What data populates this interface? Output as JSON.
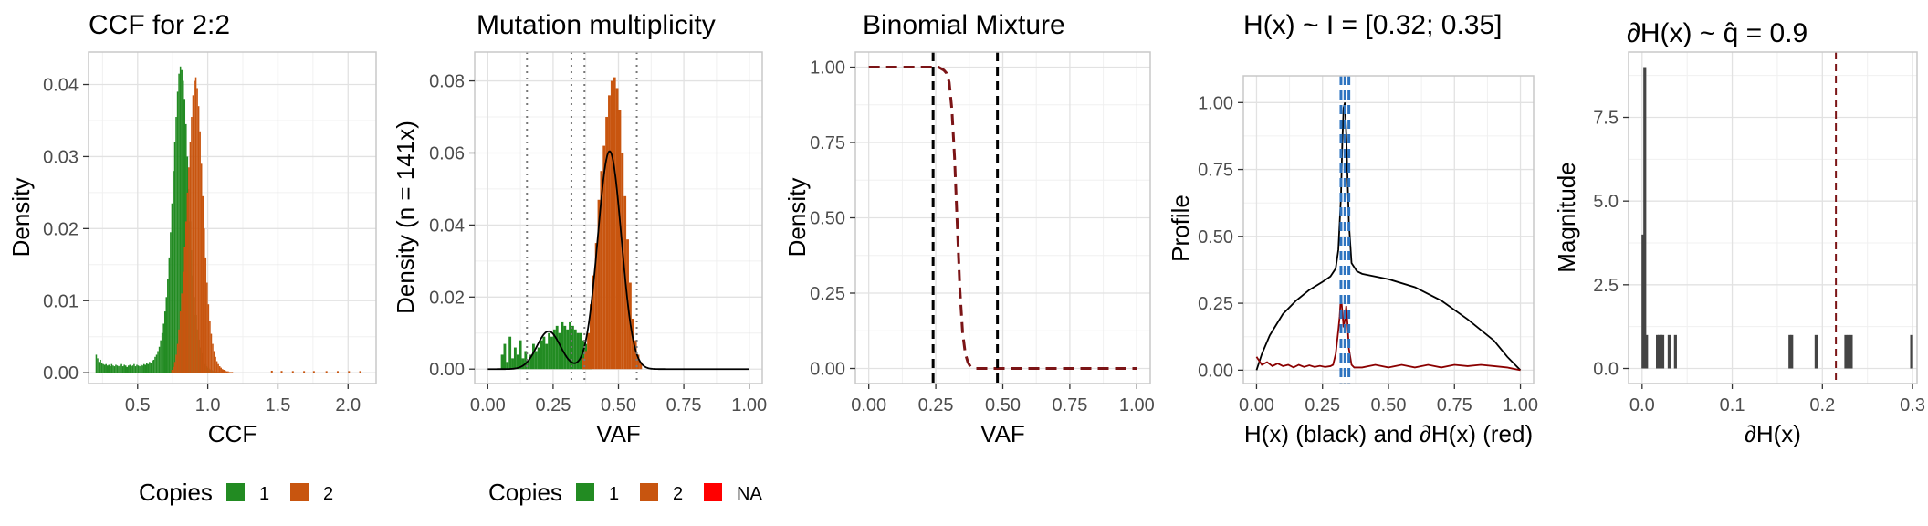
{
  "chart_data": [
    {
      "id": "ccf",
      "type": "bar",
      "title": "CCF for 2:2",
      "xlabel": "CCF",
      "ylabel": "Density",
      "xlim": [
        0.15,
        2.2
      ],
      "ylim": [
        -0.0015,
        0.0445
      ],
      "x_ticks": [
        0.5,
        1.0,
        1.5,
        2.0
      ],
      "x_tick_labels": [
        "0.5",
        "1.0",
        "1.5",
        "2.0"
      ],
      "y_ticks": [
        0,
        0.01,
        0.02,
        0.03,
        0.04
      ],
      "y_tick_labels": [
        "0.00",
        "0.01",
        "0.02",
        "0.03",
        "0.04"
      ],
      "grid": true,
      "legend": {
        "title": "Copies",
        "position": "bottom",
        "entries": [
          {
            "label": "1",
            "color": "#228B22"
          },
          {
            "label": "2",
            "color": "#C8550F"
          }
        ]
      },
      "histograms": [
        {
          "name": "1",
          "color": "#228B22",
          "x_start": 0.2,
          "bin_width": 0.01,
          "values": [
            0.0025,
            0.002,
            0.0015,
            0.0018,
            0.0013,
            0.0012,
            0.0011,
            0.0012,
            0.001,
            0.0011,
            0.0009,
            0.0012,
            0.001,
            0.0009,
            0.0011,
            0.001,
            0.0009,
            0.001,
            0.0012,
            0.0009,
            0.0011,
            0.001,
            0.0008,
            0.001,
            0.0011,
            0.0009,
            0.001,
            0.0012,
            0.0009,
            0.0011,
            0.001,
            0.0009,
            0.0011,
            0.001,
            0.0012,
            0.0011,
            0.0013,
            0.0012,
            0.0015,
            0.0014,
            0.0017,
            0.0018,
            0.0022,
            0.0025,
            0.003,
            0.0036,
            0.0045,
            0.0055,
            0.0068,
            0.0085,
            0.0105,
            0.013,
            0.016,
            0.0195,
            0.0235,
            0.028,
            0.032,
            0.0355,
            0.039,
            0.0415,
            0.0425,
            0.042,
            0.0405,
            0.038,
            0.0345,
            0.03,
            0.0255,
            0.021,
            0.017,
            0.0135,
            0.0105,
            0.008,
            0.006,
            0.0046,
            0.0035,
            0.0027,
            0.0021,
            0.0016,
            0.0012,
            0.0009,
            0.0007,
            0.0005,
            0.0004,
            0.0003,
            0.0002,
            0.0002,
            0.0001,
            0.0001
          ]
        },
        {
          "name": "2",
          "color": "#C8550F",
          "x_start": 0.74,
          "bin_width": 0.01,
          "values": [
            0.0004,
            0.0008,
            0.0015,
            0.0025,
            0.004,
            0.006,
            0.0085,
            0.011,
            0.014,
            0.0175,
            0.021,
            0.025,
            0.0285,
            0.032,
            0.0355,
            0.0385,
            0.0405,
            0.041,
            0.0395,
            0.037,
            0.0335,
            0.029,
            0.0245,
            0.02,
            0.016,
            0.0125,
            0.0095,
            0.0072,
            0.0054,
            0.004,
            0.003,
            0.0022,
            0.0016,
            0.0012,
            0.0009,
            0.0007,
            0.0005,
            0.0004,
            0.0003,
            0.0002,
            0.0002,
            0.0001,
            0.0001,
            0.0001
          ]
        }
      ],
      "scatter_tail": {
        "color": "#C8550F",
        "x": [
          1.45,
          1.52,
          1.6,
          1.68,
          1.75,
          1.84,
          1.92,
          2.0,
          2.08
        ],
        "y": [
          0.00015,
          0.00012,
          0.0001,
          0.0001,
          0.0001,
          0.0001,
          0.0001,
          0.0001,
          0.0001
        ]
      }
    },
    {
      "id": "mult",
      "type": "bar",
      "title": "Mutation multiplicity",
      "xlabel": "VAF",
      "ylabel": "Density (n = 141x)",
      "xlim": [
        -0.05,
        1.05
      ],
      "ylim": [
        -0.004,
        0.088
      ],
      "x_ticks": [
        0,
        0.25,
        0.5,
        0.75,
        1.0
      ],
      "x_tick_labels": [
        "0.00",
        "0.25",
        "0.50",
        "0.75",
        "1.00"
      ],
      "y_ticks": [
        0,
        0.02,
        0.04,
        0.06,
        0.08
      ],
      "y_tick_labels": [
        "0.00",
        "0.02",
        "0.04",
        "0.06",
        "0.08"
      ],
      "grid": true,
      "vlines_dotted": [
        0.15,
        0.32,
        0.37,
        0.57
      ],
      "legend": {
        "title": "Copies",
        "position": "bottom",
        "entries": [
          {
            "label": "1",
            "color": "#228B22"
          },
          {
            "label": "2",
            "color": "#C8550F"
          },
          {
            "label": "NA",
            "color": "#FF0000"
          }
        ]
      },
      "histograms": [
        {
          "name": "1",
          "color": "#228B22",
          "x_start": 0.05,
          "bin_width": 0.01,
          "values": [
            0.004,
            0.007,
            0.002,
            0.009,
            0.003,
            0.006,
            0.004,
            0.008,
            0.003,
            0.005,
            0.002,
            0.004,
            0.007,
            0.005,
            0.006,
            0.008,
            0.009,
            0.007,
            0.01,
            0.009,
            0.011,
            0.012,
            0.01,
            0.013,
            0.012,
            0.011,
            0.013,
            0.012,
            0.011,
            0.01,
            0.01,
            0.008,
            0.007,
            0.005,
            0.003
          ]
        },
        {
          "name": "2",
          "color": "#C8550F",
          "x_start": 0.36,
          "bin_width": 0.01,
          "values": [
            0.003,
            0.005,
            0.01,
            0.018,
            0.026,
            0.035,
            0.047,
            0.055,
            0.062,
            0.07,
            0.076,
            0.08,
            0.081,
            0.078,
            0.072,
            0.06,
            0.048,
            0.036,
            0.024,
            0.014,
            0.008,
            0.004,
            0.002
          ]
        }
      ],
      "density_curve": {
        "color": "#000000",
        "components": [
          {
            "mean": 0.233,
            "sd": 0.045,
            "height": 0.0105
          },
          {
            "mean": 0.466,
            "sd": 0.045,
            "height": 0.0605
          }
        ]
      }
    },
    {
      "id": "binom",
      "type": "line",
      "title": "Binomial Mixture",
      "xlabel": "VAF",
      "ylabel": "Density",
      "xlim": [
        -0.05,
        1.05
      ],
      "ylim": [
        -0.05,
        1.05
      ],
      "x_ticks": [
        0,
        0.25,
        0.5,
        0.75,
        1.0
      ],
      "x_tick_labels": [
        "0.00",
        "0.25",
        "0.50",
        "0.75",
        "1.00"
      ],
      "y_ticks": [
        0,
        0.25,
        0.5,
        0.75,
        1.0
      ],
      "y_tick_labels": [
        "0.00",
        "0.25",
        "0.50",
        "0.75",
        "1.00"
      ],
      "grid": true,
      "vlines_dashed": [
        0.24,
        0.48
      ],
      "series": [
        {
          "color": "#7B1416",
          "x": [
            0.0,
            0.2,
            0.26,
            0.28,
            0.29,
            0.3,
            0.31,
            0.32,
            0.33,
            0.34,
            0.35,
            0.36,
            0.37,
            0.38,
            0.4,
            1.0
          ],
          "y": [
            1.0,
            1.0,
            1.0,
            0.99,
            0.98,
            0.95,
            0.86,
            0.7,
            0.48,
            0.26,
            0.12,
            0.05,
            0.02,
            0.005,
            0.0,
            0.0
          ]
        }
      ]
    },
    {
      "id": "profile",
      "type": "line",
      "title": "H(x) ~ I = [0.32; 0.35]",
      "xlabel": "H(x) (black) and ∂H(x) (red)",
      "ylabel": "Profile",
      "xlim": [
        -0.05,
        1.05
      ],
      "ylim": [
        -0.05,
        1.1
      ],
      "x_ticks": [
        0,
        0.25,
        0.5,
        0.75,
        1.0
      ],
      "x_tick_labels": [
        "0.00",
        "0.25",
        "0.50",
        "0.75",
        "1.00"
      ],
      "y_ticks": [
        0,
        0.25,
        0.5,
        0.75,
        1.0
      ],
      "y_tick_labels": [
        "0.00",
        "0.25",
        "0.50",
        "0.75",
        "1.00"
      ],
      "grid": true,
      "vlines_dashed": [
        0.32,
        0.335,
        0.35
      ],
      "series": [
        {
          "color": "#000000",
          "x": [
            0.0,
            0.02,
            0.05,
            0.1,
            0.15,
            0.2,
            0.25,
            0.28,
            0.3,
            0.31,
            0.32,
            0.325,
            0.33,
            0.335,
            0.34,
            0.35,
            0.36,
            0.38,
            0.4,
            0.5,
            0.6,
            0.7,
            0.8,
            0.9,
            0.95,
            1.0
          ],
          "y": [
            0.0,
            0.06,
            0.13,
            0.21,
            0.26,
            0.3,
            0.33,
            0.35,
            0.38,
            0.45,
            0.65,
            0.85,
            0.98,
            1.0,
            0.88,
            0.55,
            0.4,
            0.37,
            0.36,
            0.34,
            0.31,
            0.26,
            0.19,
            0.11,
            0.05,
            0.0
          ]
        },
        {
          "color": "#8B0000",
          "x": [
            0.0,
            0.02,
            0.04,
            0.06,
            0.08,
            0.1,
            0.12,
            0.14,
            0.16,
            0.18,
            0.2,
            0.22,
            0.24,
            0.26,
            0.28,
            0.29,
            0.3,
            0.31,
            0.315,
            0.32,
            0.325,
            0.33,
            0.335,
            0.34,
            0.345,
            0.35,
            0.36,
            0.37,
            0.4,
            0.45,
            0.5,
            0.55,
            0.6,
            0.65,
            0.7,
            0.75,
            0.8,
            0.85,
            0.9,
            0.95,
            1.0
          ],
          "y": [
            0.05,
            0.02,
            0.03,
            0.015,
            0.025,
            0.015,
            0.02,
            0.01,
            0.02,
            0.012,
            0.018,
            0.012,
            0.016,
            0.012,
            0.015,
            0.02,
            0.06,
            0.15,
            0.2,
            0.28,
            0.22,
            0.16,
            0.19,
            0.24,
            0.17,
            0.08,
            0.02,
            0.01,
            0.01,
            0.02,
            0.01,
            0.02,
            0.01,
            0.02,
            0.01,
            0.02,
            0.015,
            0.02,
            0.015,
            0.01,
            0.0
          ]
        }
      ]
    },
    {
      "id": "magnitude",
      "type": "bar",
      "title": "∂H(x) ~  q̂ = 0.9",
      "xlabel": "∂H(x)",
      "ylabel": "Magnitude",
      "xlim": [
        -0.015,
        0.305
      ],
      "ylim": [
        -0.45,
        9.45
      ],
      "x_ticks": [
        0,
        0.1,
        0.2,
        0.3
      ],
      "x_tick_labels": [
        "0.0",
        "0.1",
        "0.2",
        "0.3"
      ],
      "y_ticks": [
        0,
        2.5,
        5.0,
        7.5
      ],
      "y_tick_labels": [
        "0.0",
        "2.5",
        "5.0",
        "7.5"
      ],
      "grid": true,
      "vline_dashed": 0.215,
      "bar_color": "#444444",
      "bars": [
        {
          "x": 0.001,
          "value": 4
        },
        {
          "x": 0.003,
          "value": 9
        },
        {
          "x": 0.005,
          "value": 1
        },
        {
          "x": 0.017,
          "value": 1
        },
        {
          "x": 0.019,
          "value": 1
        },
        {
          "x": 0.021,
          "value": 1
        },
        {
          "x": 0.023,
          "value": 1
        },
        {
          "x": 0.03,
          "value": 1
        },
        {
          "x": 0.037,
          "value": 1
        },
        {
          "x": 0.164,
          "value": 1
        },
        {
          "x": 0.166,
          "value": 1
        },
        {
          "x": 0.193,
          "value": 1
        },
        {
          "x": 0.226,
          "value": 1
        },
        {
          "x": 0.229,
          "value": 1
        },
        {
          "x": 0.232,
          "value": 1
        },
        {
          "x": 0.299,
          "value": 1
        }
      ]
    }
  ]
}
